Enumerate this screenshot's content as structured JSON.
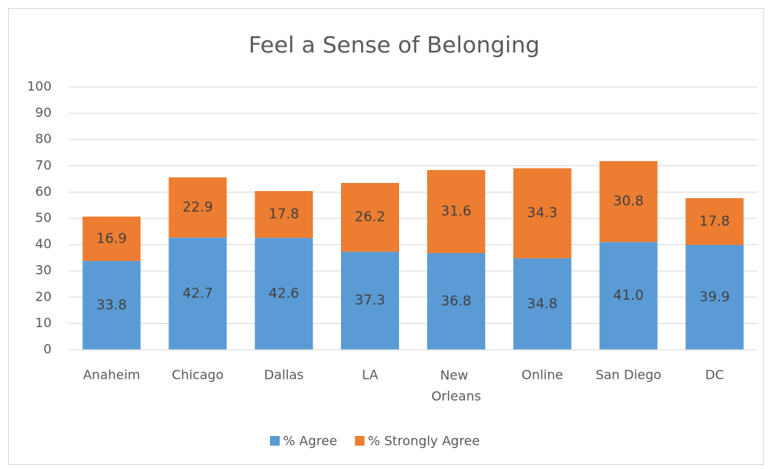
{
  "chart_data": {
    "type": "bar",
    "stacked": true,
    "title": "Feel a Sense of Belonging",
    "categories": [
      "Anaheim",
      "Chicago",
      "Dallas",
      "LA",
      "New Orleans",
      "Online",
      "San Diego",
      "DC"
    ],
    "series": [
      {
        "name": "% Agree",
        "color": "#5b9bd5",
        "values": [
          33.8,
          42.7,
          42.6,
          37.3,
          36.8,
          34.8,
          41.0,
          39.9
        ],
        "value_labels": [
          "33.8",
          "42.7",
          "42.6",
          "37.3",
          "36.8",
          "34.8",
          "41.0",
          "39.9"
        ]
      },
      {
        "name": "% Strongly Agree",
        "color": "#ed7d31",
        "values": [
          16.9,
          22.9,
          17.8,
          26.2,
          31.6,
          34.3,
          30.8,
          17.8
        ],
        "value_labels": [
          "16.9",
          "22.9",
          "17.8",
          "26.2",
          "31.6",
          "34.3",
          "30.8",
          "17.8"
        ]
      }
    ],
    "ylim": [
      0,
      100
    ],
    "yticks": [
      0,
      10,
      20,
      30,
      40,
      50,
      60,
      70,
      80,
      90,
      100
    ],
    "grid": true,
    "legend": "bottom"
  }
}
